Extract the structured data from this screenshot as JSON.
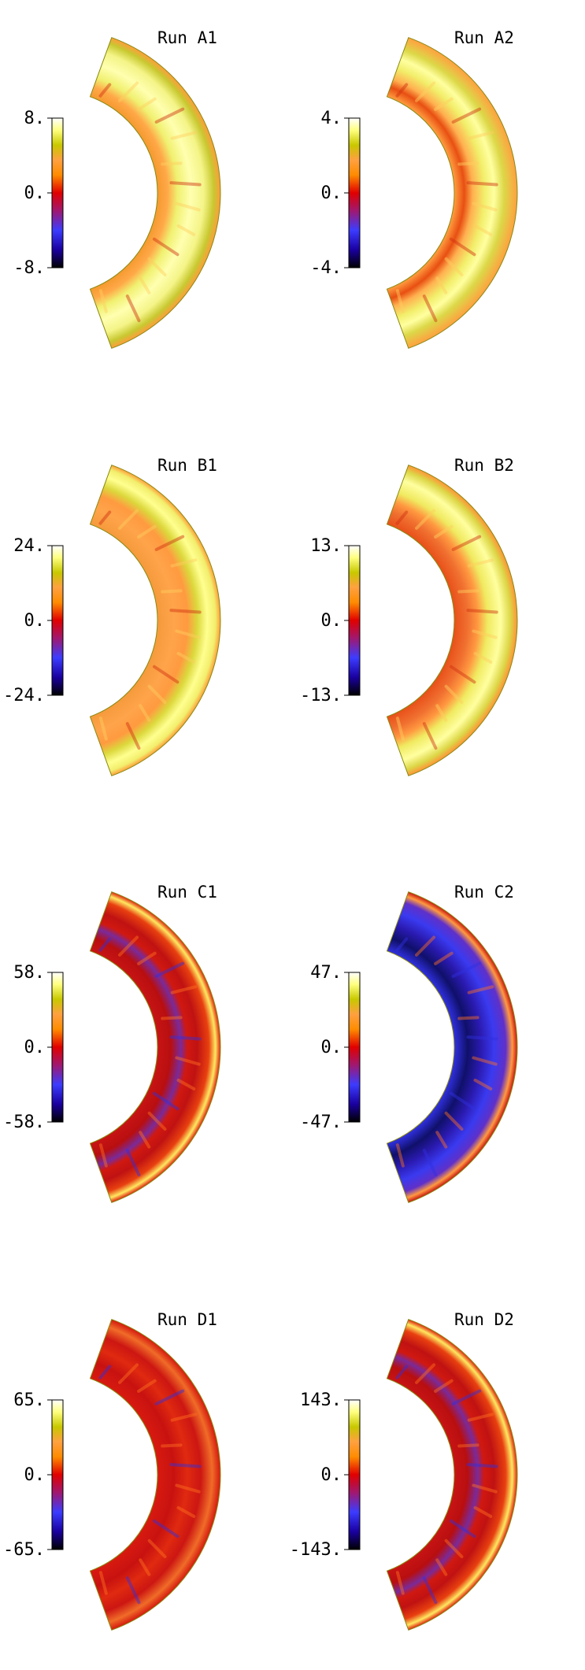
{
  "figure": {
    "panels": [
      {
        "title": "Run A1",
        "ticks": {
          "max": "8.",
          "mid": "0.",
          "min": "-8."
        },
        "pattern": "yellow-band"
      },
      {
        "title": "Run A2",
        "ticks": {
          "max": "4.",
          "mid": "0.",
          "min": "-4."
        },
        "pattern": "yellow-band-mixed"
      },
      {
        "title": "Run B1",
        "ticks": {
          "max": "24.",
          "mid": "0.",
          "min": "-24."
        },
        "pattern": "orange-with-yellow-band"
      },
      {
        "title": "Run B2",
        "ticks": {
          "max": "13.",
          "mid": "0.",
          "min": "-13."
        },
        "pattern": "red-orange-with-yellow-band"
      },
      {
        "title": "Run C1",
        "ticks": {
          "max": "58.",
          "mid": "0.",
          "min": "-58."
        },
        "pattern": "red-with-blue-band"
      },
      {
        "title": "Run C2",
        "ticks": {
          "max": "47.",
          "mid": "0.",
          "min": "-47."
        },
        "pattern": "blue-dominant"
      },
      {
        "title": "Run D1",
        "ticks": {
          "max": "65.",
          "mid": "0.",
          "min": "-65."
        },
        "pattern": "red-dominant"
      },
      {
        "title": "Run D2",
        "ticks": {
          "max": "143.",
          "mid": "0.",
          "min": "-143."
        },
        "pattern": "red-with-blue-band"
      }
    ],
    "colormap": [
      "#000000",
      "#1a00a0",
      "#3c3cff",
      "#a01870",
      "#e00000",
      "#ff8c00",
      "#ffa040",
      "#c8c800",
      "#ffff80",
      "#ffffff"
    ]
  }
}
